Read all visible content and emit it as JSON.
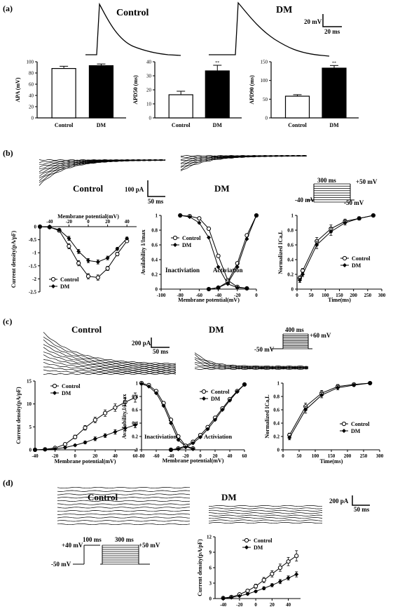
{
  "panels": {
    "a": {
      "label": "(a)",
      "trace_labels": [
        "Control",
        "DM"
      ],
      "scale_v": "20 mV",
      "scale_t": "20 ms"
    },
    "b": {
      "label": "(b)",
      "trace_labels": [
        "Control",
        "DM"
      ],
      "scale_i": "100 pA",
      "scale_t": "50 ms",
      "protocol": {
        "duration": "300 ms",
        "top": "+50 mV",
        "hold": "-40 mV",
        "bottom": "-50 mV"
      },
      "annotations": [
        "Inactiviation",
        "Activiation"
      ]
    },
    "c": {
      "label": "(c)",
      "trace_labels": [
        "Control",
        "DM"
      ],
      "scale_i": "200 pA",
      "scale_t": "50 ms",
      "protocol": {
        "duration": "400 ms",
        "top": "+60 mV",
        "hold": "-50 mV"
      },
      "annotations": [
        "Inactiviation",
        "Activiation"
      ]
    },
    "d": {
      "label": "(d)",
      "trace_labels": [
        "Control",
        "DM"
      ],
      "scale_i": "200 pA",
      "scale_t": "50 ms",
      "protocol": {
        "pre": "+40 mV",
        "pre_dur": "100 ms",
        "duration": "300 ms",
        "top": "+50 mV",
        "hold": "-50 mV"
      }
    }
  },
  "chart_data": [
    {
      "id": "a1",
      "type": "bar",
      "categories": [
        "Control",
        "DM"
      ],
      "values": [
        88,
        93
      ],
      "errors": [
        4,
        3
      ],
      "ylabel": "APA (mV)",
      "ylim": [
        0,
        100
      ],
      "yticks": [
        0,
        20,
        40,
        60,
        80,
        100
      ],
      "colors": [
        "#ffffff",
        "#000000"
      ]
    },
    {
      "id": "a2",
      "type": "bar",
      "categories": [
        "Control",
        "DM"
      ],
      "values": [
        16.5,
        33.5
      ],
      "errors": [
        2.5,
        4
      ],
      "sig": [
        "",
        "**"
      ],
      "ylabel": "APD50 (ms)",
      "ylim": [
        0,
        40
      ],
      "yticks": [
        0,
        10,
        20,
        30,
        40
      ],
      "colors": [
        "#ffffff",
        "#000000"
      ]
    },
    {
      "id": "a3",
      "type": "bar",
      "categories": [
        "Control",
        "DM"
      ],
      "values": [
        58,
        133
      ],
      "errors": [
        4,
        7
      ],
      "sig": [
        "",
        "**"
      ],
      "ylabel": "APD90 (ms)",
      "ylim": [
        0,
        150
      ],
      "yticks": [
        0,
        50,
        100,
        150
      ],
      "colors": [
        "#ffffff",
        "#000000"
      ]
    },
    {
      "id": "b1",
      "type": "line",
      "xlabel": "Membrane potential(mV)",
      "ylabel": "Current density(pA/pF)",
      "xlim": [
        -50,
        50
      ],
      "ylim": [
        -2.5,
        0
      ],
      "xticks": [
        -40,
        -20,
        0,
        20,
        40
      ],
      "yticks": [
        0,
        -0.5,
        -1.0,
        -1.5,
        -2.0,
        -2.5
      ],
      "legend": "bottom-left",
      "series": [
        {
          "name": "Control",
          "marker": "open",
          "x": [
            -50,
            -40,
            -30,
            -20,
            -10,
            0,
            10,
            20,
            30,
            40
          ],
          "y": [
            0,
            -0.02,
            -0.15,
            -0.75,
            -1.4,
            -1.9,
            -1.95,
            -1.6,
            -1.05,
            -0.55
          ],
          "err": [
            0,
            0.02,
            0.05,
            0.1,
            0.1,
            0.1,
            0.1,
            0.08,
            0.07,
            0.05
          ]
        },
        {
          "name": "DM",
          "marker": "filled",
          "x": [
            -50,
            -40,
            -30,
            -20,
            -10,
            0,
            10,
            20,
            30,
            40
          ],
          "y": [
            0,
            -0.02,
            -0.12,
            -0.45,
            -0.95,
            -1.3,
            -1.35,
            -1.2,
            -0.85,
            -0.45
          ],
          "err": [
            0,
            0.02,
            0.05,
            0.08,
            0.08,
            0.08,
            0.08,
            0.07,
            0.06,
            0.05
          ]
        }
      ]
    },
    {
      "id": "b2",
      "type": "line",
      "xlabel": "Membrane potential(mV)",
      "ylabel": "Availability I/Imax",
      "xlim": [
        -100,
        0
      ],
      "ylim": [
        0,
        1.0
      ],
      "xticks": [
        -100,
        -80,
        -60,
        -40,
        -20,
        0
      ],
      "yticks": [
        0,
        0.2,
        0.4,
        0.6,
        0.8,
        1.0
      ],
      "legend": "top-left",
      "series": [
        {
          "name": "Control",
          "marker": "open",
          "x": [
            -80,
            -70,
            -60,
            -50,
            -40,
            -30,
            -20,
            -10
          ],
          "y": [
            1.0,
            0.99,
            0.96,
            0.82,
            0.45,
            0.12,
            0.03,
            0.01
          ]
        },
        {
          "name": "DM",
          "marker": "filled",
          "x": [
            -80,
            -70,
            -60,
            -50,
            -40,
            -30,
            -20,
            -10
          ],
          "y": [
            1.0,
            0.98,
            0.9,
            0.7,
            0.3,
            0.07,
            0.02,
            0.01
          ]
        },
        {
          "name": "Control",
          "marker": "open",
          "x": [
            -50,
            -40,
            -30,
            -20,
            -10,
            0
          ],
          "y": [
            0.0,
            0.02,
            0.1,
            0.35,
            0.73,
            1.0
          ]
        },
        {
          "name": "DM",
          "marker": "filled",
          "x": [
            -50,
            -40,
            -30,
            -20,
            -10,
            0
          ],
          "y": [
            0.0,
            0.02,
            0.08,
            0.3,
            0.68,
            1.0
          ]
        }
      ]
    },
    {
      "id": "b3",
      "type": "line",
      "xlabel": "Time(ms)",
      "ylabel": "Normalized ICa,L",
      "xlim": [
        0,
        300
      ],
      "ylim": [
        0,
        1.0
      ],
      "xticks": [
        0,
        50,
        100,
        150,
        200,
        250,
        300
      ],
      "yticks": [
        0,
        0.2,
        0.4,
        0.6,
        0.8,
        1.0
      ],
      "legend": "bottom-right",
      "series": [
        {
          "name": "Control",
          "marker": "open",
          "x": [
            10,
            20,
            70,
            120,
            170,
            220,
            270
          ],
          "y": [
            0.15,
            0.25,
            0.65,
            0.82,
            0.92,
            0.96,
            1.0
          ],
          "err": [
            0.03,
            0.03,
            0.05,
            0.05,
            0.03,
            0.02,
            0
          ]
        },
        {
          "name": "DM",
          "marker": "filled",
          "x": [
            10,
            20,
            70,
            120,
            170,
            220,
            270
          ],
          "y": [
            0.12,
            0.2,
            0.6,
            0.78,
            0.9,
            0.96,
            1.0
          ],
          "err": [
            0.03,
            0.03,
            0.05,
            0.05,
            0.03,
            0.02,
            0
          ]
        }
      ]
    },
    {
      "id": "c1",
      "type": "line",
      "xlabel": "Membrane potential(mV)",
      "ylabel": "Current density(pA/pF)",
      "xlim": [
        -40,
        60
      ],
      "ylim": [
        0,
        15
      ],
      "xticks": [
        -40,
        -20,
        0,
        20,
        40,
        60
      ],
      "yticks": [
        0,
        5,
        10,
        15
      ],
      "legend": "top-left",
      "series": [
        {
          "name": "Control",
          "marker": "open",
          "x": [
            -40,
            -30,
            -20,
            -10,
            0,
            10,
            20,
            30,
            40,
            50,
            60
          ],
          "y": [
            0,
            0.1,
            0.4,
            1.2,
            2.8,
            4.8,
            6.5,
            8.0,
            9.2,
            10.4,
            11.4
          ],
          "err": [
            0,
            0.1,
            0.2,
            0.3,
            0.4,
            0.5,
            0.6,
            0.7,
            0.8,
            0.9,
            1.0
          ]
        },
        {
          "name": "DM",
          "marker": "filled",
          "x": [
            -40,
            -30,
            -20,
            -10,
            0,
            10,
            20,
            30,
            40,
            50,
            60
          ],
          "y": [
            0,
            0.05,
            0.2,
            0.5,
            1.0,
            1.6,
            2.4,
            3.1,
            3.9,
            4.7,
            5.4
          ],
          "err": [
            0,
            0.05,
            0.1,
            0.2,
            0.2,
            0.3,
            0.4,
            0.4,
            0.5,
            0.5,
            0.6
          ]
        }
      ]
    },
    {
      "id": "c2",
      "type": "line",
      "xlabel": "Membrane potential(mV)",
      "ylabel": "Availability,I/Imax",
      "xlim": [
        -80,
        60
      ],
      "ylim": [
        0,
        1.0
      ],
      "xticks": [
        -80,
        -60,
        -40,
        -20,
        0,
        20,
        40,
        60
      ],
      "yticks": [
        0,
        0.2,
        0.4,
        0.6,
        0.8,
        1.0
      ],
      "legend": "top-right",
      "series": [
        {
          "name": "Control",
          "marker": "open",
          "x": [
            -80,
            -70,
            -60,
            -50,
            -40,
            -30,
            -20,
            -10
          ],
          "y": [
            1.0,
            0.97,
            0.88,
            0.7,
            0.45,
            0.2,
            0.06,
            0.02
          ]
        },
        {
          "name": "DM",
          "marker": "filled",
          "x": [
            -80,
            -70,
            -60,
            -50,
            -40,
            -30,
            -20,
            -10
          ],
          "y": [
            0.99,
            0.95,
            0.85,
            0.66,
            0.4,
            0.15,
            0.05,
            0.01
          ]
        },
        {
          "name": "Control",
          "marker": "open",
          "x": [
            -40,
            -30,
            -20,
            -10,
            0,
            10,
            20,
            30,
            40,
            50,
            60
          ],
          "y": [
            0.0,
            0.02,
            0.06,
            0.12,
            0.22,
            0.34,
            0.48,
            0.62,
            0.76,
            0.88,
            0.98
          ]
        },
        {
          "name": "DM",
          "marker": "filled",
          "x": [
            -40,
            -30,
            -20,
            -10,
            0,
            10,
            20,
            30,
            40,
            50,
            60
          ],
          "y": [
            0.0,
            0.01,
            0.04,
            0.1,
            0.19,
            0.31,
            0.45,
            0.6,
            0.74,
            0.87,
            0.98
          ]
        }
      ]
    },
    {
      "id": "c3",
      "type": "line",
      "xlabel": "Time(ms)",
      "ylabel": "Normalized ICa,L",
      "xlim": [
        0,
        300
      ],
      "ylim": [
        0,
        1.0
      ],
      "xticks": [
        0,
        50,
        100,
        150,
        200,
        250,
        300
      ],
      "yticks": [
        0,
        0.2,
        0.4,
        0.6,
        0.8,
        1.0
      ],
      "legend": "bottom-right",
      "series": [
        {
          "name": "Control",
          "marker": "open",
          "x": [
            20,
            70,
            120,
            170,
            220,
            270
          ],
          "y": [
            0.22,
            0.65,
            0.85,
            0.95,
            0.98,
            1.0
          ],
          "err": [
            0.03,
            0.05,
            0.04,
            0.03,
            0.02,
            0
          ]
        },
        {
          "name": "DM",
          "marker": "filled",
          "x": [
            20,
            70,
            120,
            170,
            220,
            270
          ],
          "y": [
            0.18,
            0.6,
            0.82,
            0.93,
            0.97,
            1.0
          ],
          "err": [
            0.03,
            0.05,
            0.04,
            0.03,
            0.02,
            0
          ]
        }
      ]
    },
    {
      "id": "d1",
      "type": "line",
      "xlabel": "",
      "ylabel": "Current density(pA/pF)",
      "xlim": [
        -50,
        55
      ],
      "ylim": [
        0,
        12
      ],
      "xticks": [
        -40,
        -20,
        0,
        20,
        40
      ],
      "yticks": [
        0,
        3,
        6,
        9,
        12
      ],
      "legend": "top-left",
      "series": [
        {
          "name": "Control",
          "marker": "open",
          "x": [
            -40,
            -30,
            -20,
            -10,
            0,
            10,
            20,
            30,
            40,
            50
          ],
          "y": [
            0.1,
            0.3,
            0.8,
            1.5,
            2.4,
            3.6,
            4.8,
            6.0,
            7.2,
            8.3
          ],
          "err": [
            0.05,
            0.1,
            0.2,
            0.3,
            0.4,
            0.5,
            0.6,
            0.7,
            0.8,
            1.0
          ]
        },
        {
          "name": "DM",
          "marker": "filled",
          "x": [
            -40,
            -30,
            -20,
            -10,
            0,
            10,
            20,
            30,
            40,
            50
          ],
          "y": [
            0.05,
            0.2,
            0.5,
            0.9,
            1.4,
            2.0,
            2.6,
            3.3,
            4.0,
            4.7
          ],
          "err": [
            0.05,
            0.1,
            0.1,
            0.2,
            0.2,
            0.3,
            0.3,
            0.4,
            0.4,
            0.5
          ]
        }
      ]
    }
  ]
}
